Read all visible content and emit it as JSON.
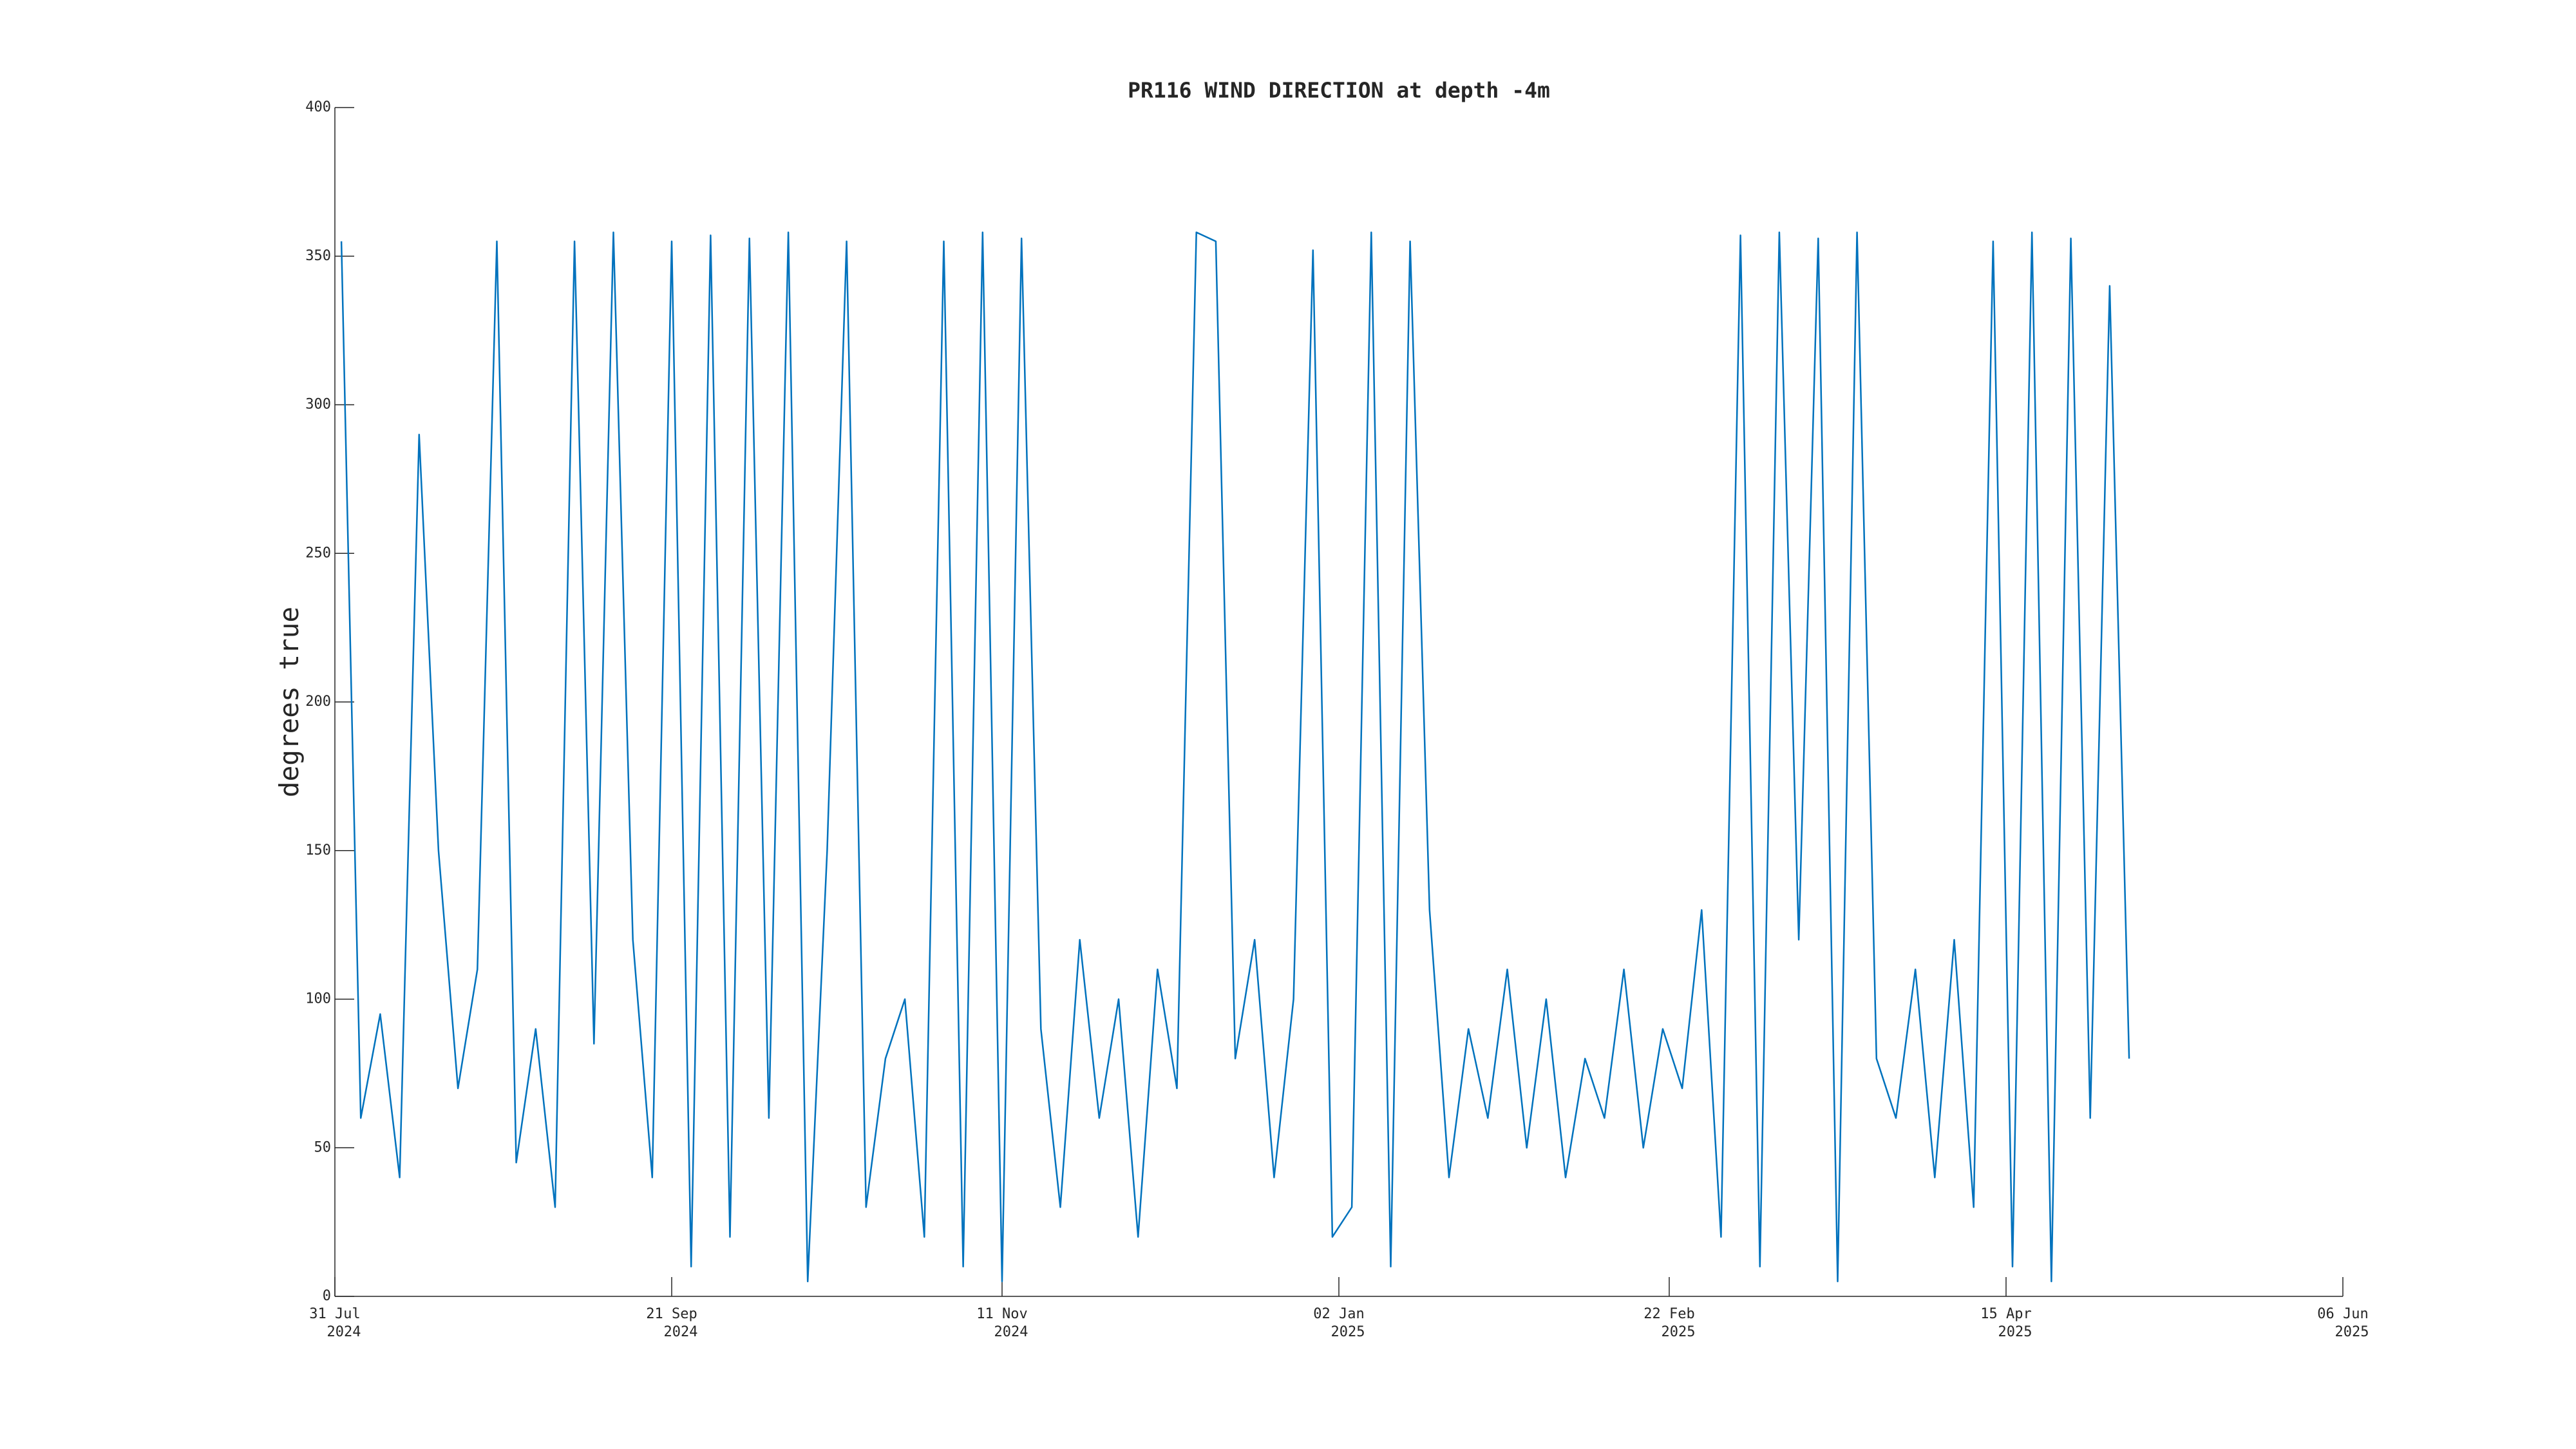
{
  "chart_data": {
    "type": "line",
    "title": "PR116 WIND DIRECTION at depth -4m",
    "ylabel": "degrees true",
    "color": "#0072bd",
    "x": [
      "2024-08-01",
      "2024-08-04",
      "2024-08-07",
      "2024-08-10",
      "2024-08-13",
      "2024-08-16",
      "2024-08-19",
      "2024-08-22",
      "2024-08-25",
      "2024-08-28",
      "2024-08-31",
      "2024-09-03",
      "2024-09-06",
      "2024-09-09",
      "2024-09-12",
      "2024-09-15",
      "2024-09-18",
      "2024-09-21",
      "2024-09-24",
      "2024-09-27",
      "2024-09-30",
      "2024-10-03",
      "2024-10-06",
      "2024-10-09",
      "2024-10-12",
      "2024-10-15",
      "2024-10-18",
      "2024-10-21",
      "2024-10-24",
      "2024-10-27",
      "2024-10-30",
      "2024-11-02",
      "2024-11-05",
      "2024-11-08",
      "2024-11-11",
      "2024-11-14",
      "2024-11-17",
      "2024-11-20",
      "2024-11-23",
      "2024-11-26",
      "2024-11-29",
      "2024-12-02",
      "2024-12-05",
      "2024-12-08",
      "2024-12-11",
      "2024-12-14",
      "2024-12-17",
      "2024-12-20",
      "2024-12-23",
      "2024-12-26",
      "2024-12-29",
      "2025-01-01",
      "2025-01-04",
      "2025-01-07",
      "2025-01-10",
      "2025-01-13",
      "2025-01-16",
      "2025-01-19",
      "2025-01-22",
      "2025-01-25",
      "2025-01-28",
      "2025-01-31",
      "2025-02-03",
      "2025-02-06",
      "2025-02-09",
      "2025-02-12",
      "2025-02-15",
      "2025-02-18",
      "2025-02-21",
      "2025-02-24",
      "2025-02-27",
      "2025-03-02",
      "2025-03-05",
      "2025-03-08",
      "2025-03-11",
      "2025-03-14",
      "2025-03-17",
      "2025-03-20",
      "2025-03-23",
      "2025-03-26",
      "2025-03-29",
      "2025-04-01",
      "2025-04-04",
      "2025-04-07",
      "2025-04-10",
      "2025-04-13",
      "2025-04-16",
      "2025-04-19",
      "2025-04-22",
      "2025-04-25",
      "2025-04-28",
      "2025-05-01",
      "2025-05-04"
    ],
    "values": [
      355,
      60,
      95,
      40,
      290,
      150,
      70,
      110,
      355,
      45,
      90,
      30,
      355,
      85,
      358,
      120,
      40,
      355,
      10,
      357,
      20,
      356,
      60,
      358,
      5,
      150,
      355,
      30,
      80,
      100,
      20,
      355,
      10,
      358,
      5,
      356,
      90,
      30,
      120,
      60,
      100,
      20,
      110,
      70,
      358,
      355,
      80,
      120,
      40,
      100,
      352,
      20,
      30,
      358,
      10,
      355,
      130,
      40,
      90,
      60,
      110,
      50,
      100,
      40,
      80,
      60,
      110,
      50,
      90,
      70,
      130,
      20,
      357,
      10,
      358,
      120,
      356,
      5,
      358,
      80,
      60,
      110,
      40,
      120,
      30,
      355,
      10,
      358,
      5,
      356,
      60,
      340,
      80
    ],
    "xlim": [
      "2024-07-31",
      "2025-06-06"
    ],
    "xticks": [
      {
        "value": "2024-07-31",
        "label": [
          "31 Jul",
          "2024"
        ]
      },
      {
        "value": "2024-09-21",
        "label": [
          "21 Sep",
          "2024"
        ]
      },
      {
        "value": "2024-11-11",
        "label": [
          "11 Nov",
          "2024"
        ]
      },
      {
        "value": "2025-01-02",
        "label": [
          "02 Jan",
          "2025"
        ]
      },
      {
        "value": "2025-02-22",
        "label": [
          "22 Feb",
          "2025"
        ]
      },
      {
        "value": "2025-04-15",
        "label": [
          "15 Apr",
          "2025"
        ]
      },
      {
        "value": "2025-06-06",
        "label": [
          "06 Jun",
          "2025"
        ]
      }
    ],
    "ylim": [
      0,
      400
    ],
    "yticks": [
      0,
      50,
      100,
      150,
      200,
      250,
      300,
      350,
      400
    ]
  }
}
